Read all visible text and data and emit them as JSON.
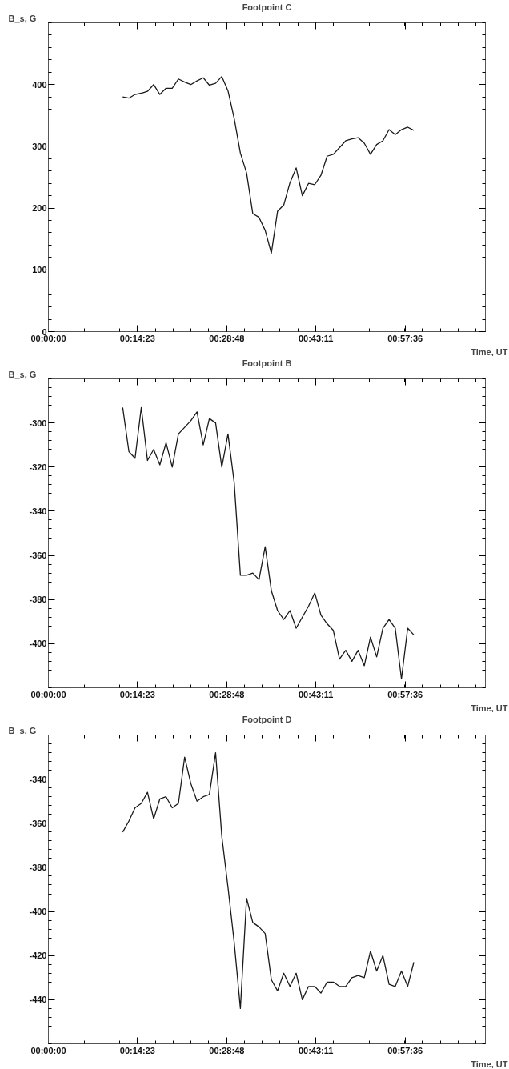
{
  "chart_data": [
    {
      "type": "line",
      "title": "Footpoint C",
      "xlabel": "Time, UT",
      "ylabel": "B_s, G",
      "color": "#1a1a1a",
      "x": [
        0.2,
        0.2167,
        0.2333,
        0.25,
        0.2667,
        0.2833,
        0.3,
        0.3167,
        0.3333,
        0.35,
        0.3667,
        0.3833,
        0.4,
        0.4167,
        0.4333,
        0.45,
        0.4667,
        0.4833,
        0.5,
        0.5167,
        0.5333,
        0.55,
        0.5667,
        0.5833,
        0.6,
        0.6167,
        0.6333,
        0.65,
        0.6667,
        0.6833,
        0.7,
        0.7167,
        0.7333,
        0.75,
        0.7667,
        0.7833,
        0.8,
        0.8167,
        0.8333,
        0.85,
        0.8667,
        0.8833,
        0.9,
        0.9167,
        0.9333,
        0.95,
        0.9667,
        0.9833
      ],
      "values": [
        380,
        378,
        384,
        386,
        389,
        400,
        384,
        394,
        394,
        409,
        404,
        400,
        406,
        411,
        399,
        402,
        413,
        390,
        345,
        289,
        257,
        191,
        185,
        164,
        127,
        195,
        205,
        241,
        265,
        220,
        240,
        238,
        253,
        284,
        287,
        298,
        309,
        312,
        314,
        305,
        287,
        303,
        309,
        327,
        319,
        327,
        331,
        326
      ],
      "xlim": [
        0,
        1.176
      ],
      "xticks": [
        {
          "value": 0,
          "label": "00:00:00"
        },
        {
          "value": 0.23972,
          "label": "00:14:23"
        },
        {
          "value": 0.48,
          "label": "00:28:48"
        },
        {
          "value": 0.71972,
          "label": "00:43:11"
        },
        {
          "value": 0.96,
          "label": "00:57:36"
        }
      ],
      "ylim": [
        0,
        500
      ],
      "yticks": [
        0,
        100,
        200,
        300,
        400
      ]
    },
    {
      "type": "line",
      "title": "Footpoint B",
      "xlabel": "Time, UT",
      "ylabel": "B_s, G",
      "color": "#1a1a1a",
      "x": [
        0.2,
        0.2167,
        0.2333,
        0.25,
        0.2667,
        0.2833,
        0.3,
        0.3167,
        0.3333,
        0.35,
        0.3667,
        0.3833,
        0.4,
        0.4167,
        0.4333,
        0.45,
        0.4667,
        0.4833,
        0.5,
        0.5167,
        0.5333,
        0.55,
        0.5667,
        0.5833,
        0.6,
        0.6167,
        0.6333,
        0.65,
        0.6667,
        0.6833,
        0.7,
        0.7167,
        0.7333,
        0.75,
        0.7667,
        0.7833,
        0.8,
        0.8167,
        0.8333,
        0.85,
        0.8667,
        0.8833,
        0.9,
        0.9167,
        0.9333,
        0.95,
        0.9667,
        0.9833
      ],
      "values": [
        -293,
        -313,
        -316,
        -293,
        -317,
        -312,
        -319,
        -309,
        -320,
        -305,
        -302,
        -299,
        -295,
        -310,
        -298,
        -300,
        -320,
        -305,
        -327,
        -369,
        -369,
        -368,
        -371,
        -356,
        -376,
        -385,
        -389,
        -385,
        -393,
        -388,
        -383,
        -377,
        -387,
        -391,
        -394,
        -407,
        -403,
        -408,
        -403,
        -410,
        -397,
        -406,
        -393,
        -389,
        -393,
        -416,
        -393,
        -396
      ],
      "xlim": [
        0,
        1.176
      ],
      "xticks": [
        {
          "value": 0,
          "label": "00:00:00"
        },
        {
          "value": 0.23972,
          "label": "00:14:23"
        },
        {
          "value": 0.48,
          "label": "00:28:48"
        },
        {
          "value": 0.71972,
          "label": "00:43:11"
        },
        {
          "value": 0.96,
          "label": "00:57:36"
        }
      ],
      "ylim": [
        -420,
        -280
      ],
      "yticks": [
        -400,
        -380,
        -360,
        -340,
        -320,
        -300
      ]
    },
    {
      "type": "line",
      "title": "Footpoint D",
      "xlabel": "Time, UT",
      "ylabel": "B_s, G",
      "color": "#1a1a1a",
      "x": [
        0.2,
        0.2167,
        0.2333,
        0.25,
        0.2667,
        0.2833,
        0.3,
        0.3167,
        0.3333,
        0.35,
        0.3667,
        0.3833,
        0.4,
        0.4167,
        0.4333,
        0.45,
        0.4667,
        0.4833,
        0.5,
        0.5167,
        0.5333,
        0.55,
        0.5667,
        0.5833,
        0.6,
        0.6167,
        0.6333,
        0.65,
        0.6667,
        0.6833,
        0.7,
        0.7167,
        0.7333,
        0.75,
        0.7667,
        0.7833,
        0.8,
        0.8167,
        0.8333,
        0.85,
        0.8667,
        0.8833,
        0.9,
        0.9167,
        0.9333,
        0.95,
        0.9667,
        0.9833
      ],
      "values": [
        -364,
        -359,
        -353,
        -351,
        -346,
        -358,
        -349,
        -348,
        -353,
        -351,
        -330,
        -342,
        -350,
        -348,
        -347,
        -328,
        -366,
        -389,
        -414,
        -444,
        -394,
        -405,
        -407,
        -410,
        -431,
        -436,
        -428,
        -434,
        -428,
        -440,
        -434,
        -434,
        -437,
        -432,
        -432,
        -434,
        -434,
        -430,
        -429,
        -430,
        -418,
        -427,
        -420,
        -433,
        -434,
        -427,
        -434,
        -423
      ],
      "xlim": [
        0,
        1.176
      ],
      "xticks": [
        {
          "value": 0,
          "label": "00:00:00"
        },
        {
          "value": 0.23972,
          "label": "00:14:23"
        },
        {
          "value": 0.48,
          "label": "00:28:48"
        },
        {
          "value": 0.71972,
          "label": "00:43:11"
        },
        {
          "value": 0.96,
          "label": "00:57:36"
        }
      ],
      "ylim": [
        -460,
        -320
      ],
      "yticks": [
        -440,
        -420,
        -400,
        -380,
        -360,
        -340
      ]
    }
  ]
}
